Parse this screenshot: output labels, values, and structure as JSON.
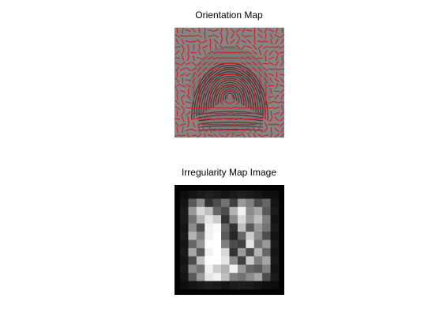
{
  "figure": {
    "panels": [
      {
        "title": "Orientation Map"
      },
      {
        "title": "Irregularity Map Image"
      }
    ]
  },
  "colors": {
    "orientation_line": "#d42020",
    "ridge": "#2a2a2a",
    "background_gray": "#858585",
    "irregularity_frame": "#000000"
  },
  "irregularity_grid": {
    "rows": 12,
    "cols": 12,
    "values": [
      [
        0.05,
        0.08,
        0.1,
        0.12,
        0.1,
        0.08,
        0.1,
        0.12,
        0.1,
        0.08,
        0.06,
        0.05
      ],
      [
        0.08,
        0.35,
        0.55,
        0.2,
        0.3,
        0.45,
        0.25,
        0.6,
        0.5,
        0.3,
        0.4,
        0.08
      ],
      [
        0.1,
        0.6,
        0.85,
        0.75,
        0.4,
        0.3,
        0.7,
        0.95,
        0.55,
        0.65,
        0.35,
        0.1
      ],
      [
        0.1,
        0.45,
        0.7,
        0.9,
        0.8,
        0.2,
        0.55,
        0.85,
        0.6,
        0.75,
        0.5,
        0.08
      ],
      [
        0.08,
        0.55,
        0.3,
        0.95,
        0.98,
        0.4,
        0.2,
        0.75,
        0.35,
        0.6,
        0.45,
        0.1
      ],
      [
        0.1,
        0.7,
        0.5,
        0.95,
        1.0,
        0.35,
        0.15,
        0.4,
        0.8,
        0.55,
        0.3,
        0.08
      ],
      [
        0.08,
        0.4,
        0.6,
        1.0,
        1.0,
        0.5,
        0.3,
        0.25,
        0.9,
        0.45,
        0.6,
        0.1
      ],
      [
        0.1,
        0.65,
        0.35,
        0.95,
        1.0,
        0.85,
        0.2,
        0.6,
        0.3,
        0.7,
        0.4,
        0.08
      ],
      [
        0.08,
        0.3,
        0.75,
        1.0,
        1.0,
        0.9,
        0.55,
        0.25,
        0.8,
        0.5,
        0.65,
        0.1
      ],
      [
        0.1,
        0.55,
        0.45,
        0.95,
        0.8,
        0.7,
        0.95,
        0.6,
        0.4,
        0.35,
        0.5,
        0.08
      ],
      [
        0.08,
        0.35,
        0.6,
        0.9,
        0.95,
        0.75,
        0.5,
        0.45,
        0.55,
        0.65,
        0.3,
        0.1
      ],
      [
        0.05,
        0.08,
        0.1,
        0.12,
        0.1,
        0.08,
        0.1,
        0.12,
        0.1,
        0.08,
        0.06,
        0.05
      ]
    ]
  }
}
